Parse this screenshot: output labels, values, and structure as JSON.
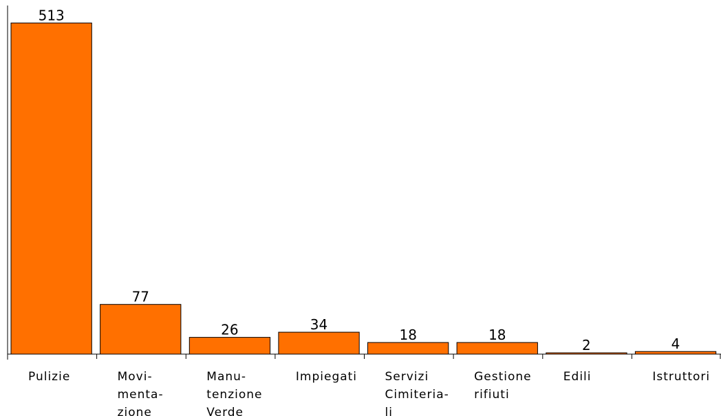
{
  "chart_data": {
    "type": "bar",
    "categories": [
      [
        "Pulizie"
      ],
      [
        "Movi-",
        "menta-",
        "zione"
      ],
      [
        "Manu-",
        "tenzione",
        "Verde"
      ],
      [
        "Impiegati"
      ],
      [
        "Servizi",
        "Cimiteria-",
        "li"
      ],
      [
        "Gestione",
        "rifiuti"
      ],
      [
        "Edili"
      ],
      [
        "Istruttori"
      ]
    ],
    "values": [
      513,
      77,
      26,
      34,
      18,
      18,
      2,
      4
    ],
    "ylim": [
      0,
      540
    ],
    "grid": false,
    "legend": "none",
    "bar_color": "#ff7000",
    "bar_stroke": "#000000"
  }
}
